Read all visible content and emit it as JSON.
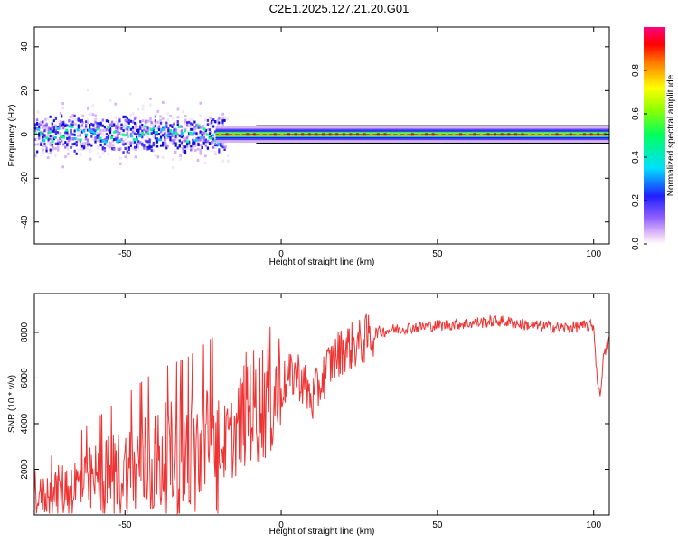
{
  "title": "C2E1.2025.127.21.20.G01",
  "chart_data": [
    {
      "type": "heatmap",
      "xlabel": "Height of straight line (km)",
      "ylabel": "Frequency (Hz)",
      "xlim": [
        -79,
        105
      ],
      "ylim": [
        -50,
        49
      ],
      "xticks": [
        -50,
        0,
        50,
        100
      ],
      "yticks": [
        40,
        20,
        0,
        -20,
        -40
      ],
      "colorbar": {
        "label": "Normalized spectral amplitude",
        "range": [
          0,
          1
        ],
        "ticks": [
          "0.0",
          "0.2",
          "0.4",
          "0.6",
          "0.8"
        ]
      },
      "noisy_region_x": [
        -79,
        -20
      ],
      "dominant_frequency_hz": 0
    },
    {
      "type": "line",
      "xlabel": "Height of straight line (km)",
      "ylabel": "SNR (10 * v/v)",
      "xlim": [
        -79,
        105
      ],
      "ylim": [
        0,
        9700
      ],
      "xticks": [
        -50,
        0,
        50,
        100
      ],
      "yticks": [
        2000,
        4000,
        6000,
        8000
      ],
      "series": [
        {
          "color": "#ee3333",
          "x": [
            -79,
            -70,
            -60,
            -50,
            -40,
            -30,
            -20,
            -15,
            -10,
            -8,
            -5,
            0,
            5,
            10,
            15,
            20,
            25,
            30,
            40,
            50,
            60,
            70,
            80,
            90,
            100,
            101,
            102,
            103,
            105
          ],
          "y": [
            700,
            1100,
            1500,
            1900,
            2300,
            2500,
            2900,
            3500,
            5000,
            4600,
            5200,
            5600,
            6300,
            5000,
            6500,
            7300,
            7500,
            8000,
            8200,
            8300,
            8400,
            8500,
            8300,
            8200,
            8300,
            6200,
            5100,
            6800,
            7700
          ]
        }
      ]
    }
  ]
}
